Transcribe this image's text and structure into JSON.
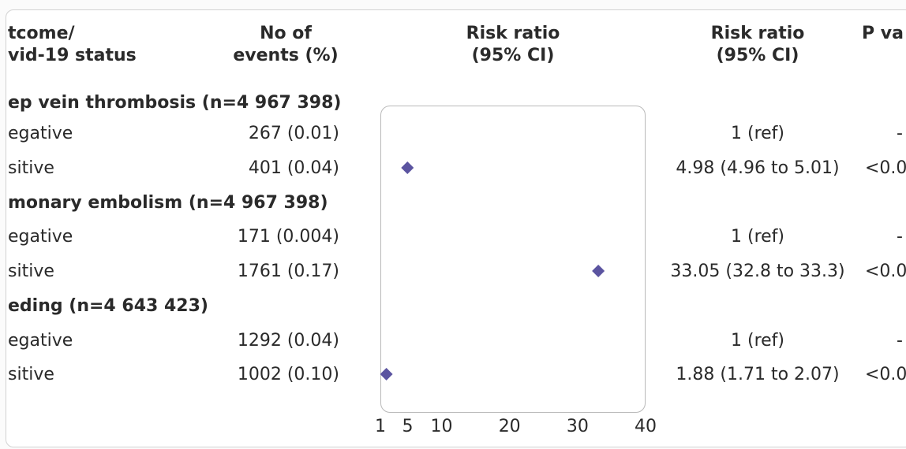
{
  "headers": {
    "outcome_line1": "tcome/",
    "outcome_line2": "vid-19 status",
    "events_line1": "No of",
    "events_line2": "events (%)",
    "plot_line1": "Risk ratio",
    "plot_line2": "(95% CI)",
    "rr_line1": "Risk ratio",
    "rr_line2": "(95% CI)",
    "p_line1": "P va"
  },
  "sections": [
    {
      "title": "ep vein thrombosis  (n=4 967 398)",
      "rows": [
        {
          "status": "egative",
          "events": "267 (0.01)",
          "rr_text": "1 (ref)",
          "p": "-"
        },
        {
          "status": "sitive",
          "events": "401 (0.04)",
          "rr_text": "4.98 (4.96 to 5.01)",
          "p": "<0.0"
        }
      ]
    },
    {
      "title": "monary embolism (n=4 967 398)",
      "rows": [
        {
          "status": "egative",
          "events": "171 (0.004)",
          "rr_text": "1 (ref)",
          "p": "-"
        },
        {
          "status": "sitive",
          "events": "1761 (0.17)",
          "rr_text": "33.05 (32.8 to 33.3)",
          "p": "<0.0"
        }
      ]
    },
    {
      "title": "eding (n=4 643 423)",
      "rows": [
        {
          "status": "egative",
          "events": "1292 (0.04)",
          "rr_text": "1 (ref)",
          "p": "-"
        },
        {
          "status": "sitive",
          "events": "1002 (0.10)",
          "rr_text": "1.88 (1.71 to 2.07)",
          "p": "<0.0"
        }
      ]
    }
  ],
  "chart_data": {
    "type": "scatter",
    "title": "",
    "xlabel": "",
    "ylabel": "",
    "xlim": [
      1,
      40
    ],
    "x_ticks": [
      "1",
      "5",
      "10",
      "20",
      "30",
      "40"
    ],
    "marker_color": "#5b54a0",
    "categories": [
      "Deep vein thrombosis: positive",
      "Pulmonary embolism: positive",
      "Bleeding: positive"
    ],
    "series": [
      {
        "values": [
          {
            "label": "positive",
            "group": "ep vein thrombosis",
            "x": 4.98,
            "ci": [
              4.96,
              5.01
            ]
          },
          {
            "label": "positive",
            "group": "monary embolism",
            "x": 33.05,
            "ci": [
              32.8,
              33.3
            ]
          },
          {
            "label": "positive",
            "group": "eding",
            "x": 1.88,
            "ci": [
              1.71,
              2.07
            ]
          }
        ]
      }
    ]
  }
}
